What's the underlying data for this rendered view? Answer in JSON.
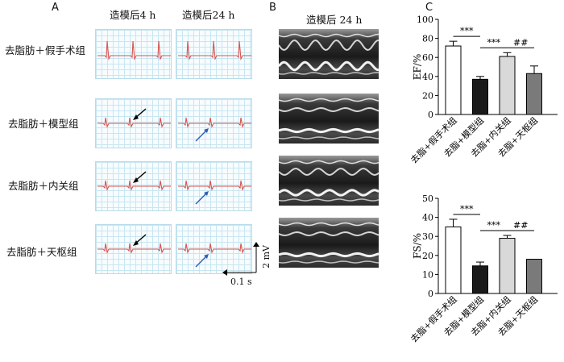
{
  "panels": {
    "a": {
      "letter": "A",
      "head_4h": "造模后4 h",
      "head_24h": "造模后24 h"
    },
    "b": {
      "letter": "B",
      "head": "造模后 24 h"
    },
    "c": {
      "letter": "C"
    }
  },
  "groups": [
    {
      "label": "去脂肪＋假手术组"
    },
    {
      "label": "去脂肪＋模型组"
    },
    {
      "label": "去脂肪＋内关组"
    },
    {
      "label": "去脂肪＋天枢组"
    }
  ],
  "scale_bar": {
    "voltage": "2 mV",
    "time": "0.1 s"
  },
  "colors": {
    "ecg_trace": "#d9534f",
    "black_arrow": "#000000",
    "blue_arrow": "#2f5fb3",
    "grid": "#c8e6f1"
  },
  "chart_data": [
    {
      "type": "bar",
      "ylabel": "EF/%",
      "ylim": [
        0,
        100
      ],
      "yticks": [
        "0",
        "20",
        "40",
        "60",
        "80",
        "100"
      ],
      "categories": [
        "去脂+假手术组",
        "去脂+模型组",
        "去脂+内关组",
        "去脂+天枢组"
      ],
      "values": [
        72,
        37,
        61,
        43
      ],
      "errors": [
        5,
        3,
        4,
        8
      ],
      "bar_colors": [
        "#ffffff",
        "#1a1a1a",
        "#d9d9d9",
        "#7a7a7a"
      ],
      "annotations": [
        {
          "from": 0,
          "to": 1,
          "text": "***"
        },
        {
          "from": 1,
          "to": 2,
          "text": "***"
        },
        {
          "from": 2,
          "to": 3,
          "text": "##"
        }
      ]
    },
    {
      "type": "bar",
      "ylabel": "FS/%",
      "ylim": [
        0,
        50
      ],
      "yticks": [
        "0",
        "10",
        "20",
        "30",
        "40",
        "50"
      ],
      "categories": [
        "去脂+假手术组",
        "去脂+模型组",
        "去脂+内关组",
        "去脂+天枢组"
      ],
      "values": [
        35,
        14.5,
        29,
        18
      ],
      "errors": [
        4,
        2,
        1.5,
        0
      ],
      "bar_colors": [
        "#ffffff",
        "#1a1a1a",
        "#d9d9d9",
        "#7a7a7a"
      ],
      "annotations": [
        {
          "from": 0,
          "to": 1,
          "text": "***"
        },
        {
          "from": 1,
          "to": 2,
          "text": "***"
        },
        {
          "from": 2,
          "to": 3,
          "text": "##"
        }
      ]
    }
  ]
}
